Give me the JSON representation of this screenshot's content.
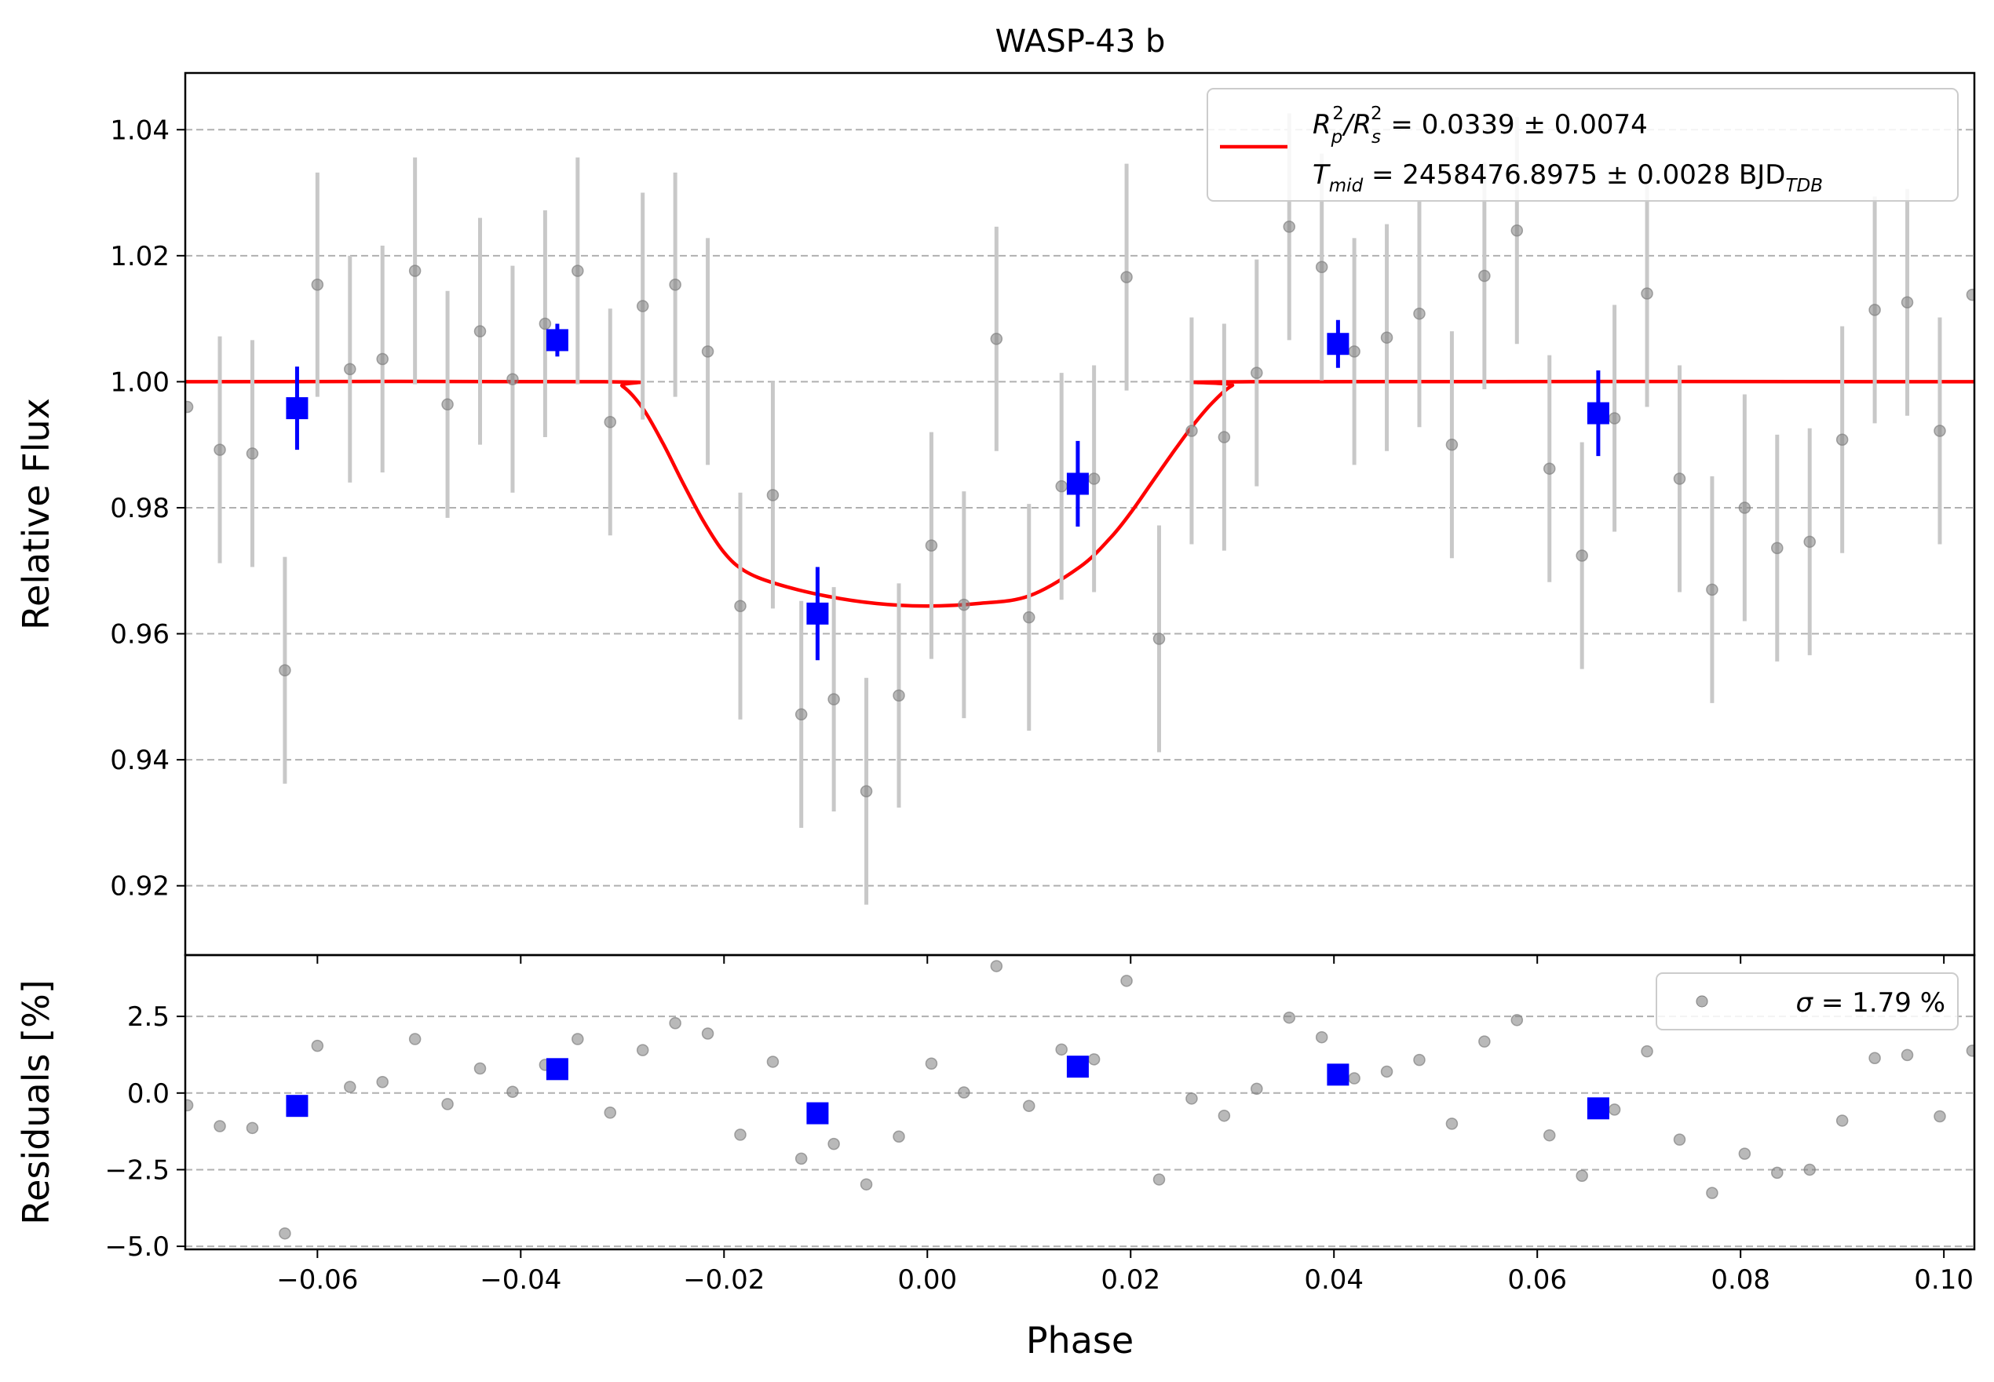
{
  "chart_data": [
    {
      "type": "scatter",
      "panel": "main",
      "title": "WASP-43 b",
      "xlabel": "",
      "ylabel": "Relative Flux",
      "xlim": [
        -0.073,
        0.103
      ],
      "ylim": [
        0.909,
        1.049
      ],
      "grid": "y dashed",
      "legend_placement": "top-right",
      "xticks": [
        -0.06,
        -0.04,
        -0.02,
        0.0,
        0.02,
        0.04,
        0.06,
        0.08,
        0.1
      ],
      "xtick_labels": [
        "−0.06",
        "−0.04",
        "−0.02",
        "0.00",
        "0.02",
        "0.04",
        "0.06",
        "0.08",
        "0.10"
      ],
      "yticks": [
        0.92,
        0.94,
        0.96,
        0.98,
        1.0,
        1.02,
        1.04
      ],
      "ytick_labels": [
        "0.92",
        "0.94",
        "0.96",
        "0.98",
        "1.00",
        "1.02",
        "1.04"
      ],
      "series": [
        {
          "name": "",
          "kind": "raw",
          "color": "#808080",
          "points": [
            {
              "x": -0.0728,
              "y": 0.996,
              "err": 0
            },
            {
              "x": -0.0696,
              "y": 0.9892,
              "err": 0.018
            },
            {
              "x": -0.0664,
              "y": 0.9886,
              "err": 0.018
            },
            {
              "x": -0.0632,
              "y": 0.9542,
              "err": 0.018
            },
            {
              "x": -0.06,
              "y": 1.0154,
              "err": 0.0178
            },
            {
              "x": -0.0568,
              "y": 1.002,
              "err": 0.018
            },
            {
              "x": -0.0536,
              "y": 1.0036,
              "err": 0.018
            },
            {
              "x": -0.0504,
              "y": 1.0176,
              "err": 0.018
            },
            {
              "x": -0.0472,
              "y": 0.9964,
              "err": 0.018
            },
            {
              "x": -0.044,
              "y": 1.008,
              "err": 0.018
            },
            {
              "x": -0.0408,
              "y": 1.0004,
              "err": 0.018
            },
            {
              "x": -0.0376,
              "y": 1.0092,
              "err": 0.018
            },
            {
              "x": -0.0344,
              "y": 1.0176,
              "err": 0.018
            },
            {
              "x": -0.0312,
              "y": 0.9936,
              "err": 0.018
            },
            {
              "x": -0.028,
              "y": 1.012,
              "err": 0.018
            },
            {
              "x": -0.0248,
              "y": 1.0154,
              "err": 0.0178
            },
            {
              "x": -0.0216,
              "y": 1.0048,
              "err": 0.018
            },
            {
              "x": -0.0184,
              "y": 0.9644,
              "err": 0.018
            },
            {
              "x": -0.0152,
              "y": 0.982,
              "err": 0.018
            },
            {
              "x": -0.0124,
              "y": 0.9472,
              "err": 0.018
            },
            {
              "x": -0.0092,
              "y": 0.9496,
              "err": 0.0178
            },
            {
              "x": -0.006,
              "y": 0.935,
              "err": 0.018
            },
            {
              "x": -0.0028,
              "y": 0.9502,
              "err": 0.0178
            },
            {
              "x": 0.0004,
              "y": 0.974,
              "err": 0.018
            },
            {
              "x": 0.0036,
              "y": 0.9646,
              "err": 0.018
            },
            {
              "x": 0.0068,
              "y": 1.0068,
              "err": 0.0178
            },
            {
              "x": 0.01,
              "y": 0.9626,
              "err": 0.018
            },
            {
              "x": 0.0132,
              "y": 0.9834,
              "err": 0.018
            },
            {
              "x": 0.0164,
              "y": 0.9846,
              "err": 0.018
            },
            {
              "x": 0.0196,
              "y": 1.0166,
              "err": 0.018
            },
            {
              "x": 0.0228,
              "y": 0.9592,
              "err": 0.018
            },
            {
              "x": 0.026,
              "y": 0.9922,
              "err": 0.018
            },
            {
              "x": 0.0292,
              "y": 0.9912,
              "err": 0.018
            },
            {
              "x": 0.0324,
              "y": 1.0014,
              "err": 0.018
            },
            {
              "x": 0.0356,
              "y": 1.0246,
              "err": 0.018
            },
            {
              "x": 0.0388,
              "y": 1.0182,
              "err": 0.018
            },
            {
              "x": 0.042,
              "y": 1.0048,
              "err": 0.018
            },
            {
              "x": 0.0452,
              "y": 1.007,
              "err": 0.018
            },
            {
              "x": 0.0484,
              "y": 1.0108,
              "err": 0.018
            },
            {
              "x": 0.0516,
              "y": 0.99,
              "err": 0.018
            },
            {
              "x": 0.0548,
              "y": 1.0168,
              "err": 0.018
            },
            {
              "x": 0.058,
              "y": 1.024,
              "err": 0.018
            },
            {
              "x": 0.0612,
              "y": 0.9862,
              "err": 0.018
            },
            {
              "x": 0.0644,
              "y": 0.9724,
              "err": 0.018
            },
            {
              "x": 0.0676,
              "y": 0.9942,
              "err": 0.018
            },
            {
              "x": 0.0708,
              "y": 1.014,
              "err": 0.018
            },
            {
              "x": 0.074,
              "y": 0.9846,
              "err": 0.018
            },
            {
              "x": 0.0772,
              "y": 0.967,
              "err": 0.018
            },
            {
              "x": 0.0804,
              "y": 0.98,
              "err": 0.018
            },
            {
              "x": 0.0836,
              "y": 0.9736,
              "err": 0.018
            },
            {
              "x": 0.0868,
              "y": 0.9746,
              "err": 0.018
            },
            {
              "x": 0.09,
              "y": 0.9908,
              "err": 0.018
            },
            {
              "x": 0.0932,
              "y": 1.0114,
              "err": 0.018
            },
            {
              "x": 0.0964,
              "y": 1.0126,
              "err": 0.018
            },
            {
              "x": 0.0996,
              "y": 0.9922,
              "err": 0.018
            },
            {
              "x": 0.1028,
              "y": 1.0138,
              "err": 0
            }
          ]
        },
        {
          "name": "",
          "kind": "binned",
          "color": "#0000ff",
          "points": [
            {
              "x": -0.062,
              "y": 0.9958,
              "err": 0.0066
            },
            {
              "x": -0.0364,
              "y": 1.0066,
              "err": 0.0026
            },
            {
              "x": -0.0108,
              "y": 0.9632,
              "err": 0.0074
            },
            {
              "x": 0.0148,
              "y": 0.9838,
              "err": 0.0068
            },
            {
              "x": 0.0404,
              "y": 1.006,
              "err": 0.0038
            },
            {
              "x": 0.066,
              "y": 0.995,
              "err": 0.0068
            }
          ]
        },
        {
          "name": "R_p^2/R_s^2 = 0.0339 ± 0.0074 ; T_mid = 2458476.8975 ± 0.0028 BJD_TDB",
          "kind": "model",
          "color": "#ff0000",
          "points": [
            {
              "x": -0.073,
              "y": 1.0
            },
            {
              "x": -0.0318,
              "y": 1.0
            },
            {
              "x": -0.03,
              "y": 0.9993
            },
            {
              "x": -0.028,
              "y": 0.9958
            },
            {
              "x": -0.026,
              "y": 0.9902
            },
            {
              "x": -0.024,
              "y": 0.9838
            },
            {
              "x": -0.022,
              "y": 0.9778
            },
            {
              "x": -0.02,
              "y": 0.9729
            },
            {
              "x": -0.018,
              "y": 0.97
            },
            {
              "x": -0.015,
              "y": 0.968
            },
            {
              "x": -0.01,
              "y": 0.966
            },
            {
              "x": -0.005,
              "y": 0.9648
            },
            {
              "x": 0.0,
              "y": 0.9644
            },
            {
              "x": 0.005,
              "y": 0.9648
            },
            {
              "x": 0.01,
              "y": 0.966
            },
            {
              "x": 0.015,
              "y": 0.9706
            },
            {
              "x": 0.018,
              "y": 0.9752
            },
            {
              "x": 0.02,
              "y": 0.9792
            },
            {
              "x": 0.022,
              "y": 0.9838
            },
            {
              "x": 0.024,
              "y": 0.9884
            },
            {
              "x": 0.026,
              "y": 0.9928
            },
            {
              "x": 0.028,
              "y": 0.9966
            },
            {
              "x": 0.03,
              "y": 0.9994
            },
            {
              "x": 0.0318,
              "y": 1.0
            },
            {
              "x": 0.103,
              "y": 1.0
            }
          ]
        }
      ],
      "legend": {
        "line1": {
          "prefix": "R",
          "sub1": "p",
          "sup1": "2",
          "mid": "/R",
          "sub2": "s",
          "sup2": "2",
          "rest": " = 0.0339 ± 0.0074"
        },
        "line2": {
          "prefix": "T",
          "sub1": "mid",
          "rest": " = 2458476.8975 ± 0.0028 BJD",
          "sub2": "TDB"
        }
      }
    },
    {
      "type": "scatter",
      "panel": "residuals",
      "xlabel": "Phase",
      "ylabel": "Residuals [%]",
      "xlim": [
        -0.073,
        0.103
      ],
      "ylim": [
        -5.1,
        4.5
      ],
      "grid": "y dashed",
      "legend_placement": "top-right",
      "yticks": [
        -5.0,
        -2.5,
        0.0,
        2.5
      ],
      "ytick_labels": [
        "−5.0",
        "−2.5",
        "0.0",
        "2.5"
      ],
      "legend": {
        "symbol": "σ",
        "text": " = 1.79 %"
      },
      "series": [
        {
          "name": "σ = 1.79 %",
          "kind": "raw",
          "color": "#808080",
          "points": [
            {
              "x": -0.0728,
              "y": -0.4
            },
            {
              "x": -0.0696,
              "y": -1.08
            },
            {
              "x": -0.0664,
              "y": -1.14
            },
            {
              "x": -0.0632,
              "y": -4.58
            },
            {
              "x": -0.06,
              "y": 1.54
            },
            {
              "x": -0.0568,
              "y": 0.2
            },
            {
              "x": -0.0536,
              "y": 0.36
            },
            {
              "x": -0.0504,
              "y": 1.76
            },
            {
              "x": -0.0472,
              "y": -0.36
            },
            {
              "x": -0.044,
              "y": 0.8
            },
            {
              "x": -0.0408,
              "y": 0.04
            },
            {
              "x": -0.0376,
              "y": 0.92
            },
            {
              "x": -0.0344,
              "y": 1.76
            },
            {
              "x": -0.0312,
              "y": -0.64
            },
            {
              "x": -0.028,
              "y": 1.4
            },
            {
              "x": -0.0248,
              "y": 2.28
            },
            {
              "x": -0.0216,
              "y": 1.94
            },
            {
              "x": -0.0184,
              "y": -1.36
            },
            {
              "x": -0.0152,
              "y": 1.02
            },
            {
              "x": -0.0124,
              "y": -2.14
            },
            {
              "x": -0.0092,
              "y": -1.66
            },
            {
              "x": -0.006,
              "y": -2.98
            },
            {
              "x": -0.0028,
              "y": -1.42
            },
            {
              "x": 0.0004,
              "y": 0.96
            },
            {
              "x": 0.0036,
              "y": 0.02
            },
            {
              "x": 0.0068,
              "y": 4.14
            },
            {
              "x": 0.01,
              "y": -0.42
            },
            {
              "x": 0.0132,
              "y": 1.42
            },
            {
              "x": 0.0164,
              "y": 1.1
            },
            {
              "x": 0.0196,
              "y": 3.66
            },
            {
              "x": 0.0228,
              "y": -2.82
            },
            {
              "x": 0.026,
              "y": -0.18
            },
            {
              "x": 0.0292,
              "y": -0.74
            },
            {
              "x": 0.0324,
              "y": 0.14
            },
            {
              "x": 0.0356,
              "y": 2.46
            },
            {
              "x": 0.0388,
              "y": 1.82
            },
            {
              "x": 0.042,
              "y": 0.48
            },
            {
              "x": 0.0452,
              "y": 0.7
            },
            {
              "x": 0.0484,
              "y": 1.08
            },
            {
              "x": 0.0516,
              "y": -1.0
            },
            {
              "x": 0.0548,
              "y": 1.68
            },
            {
              "x": 0.058,
              "y": 2.38
            },
            {
              "x": 0.0612,
              "y": -1.38
            },
            {
              "x": 0.0644,
              "y": -2.7
            },
            {
              "x": 0.0676,
              "y": -0.54
            },
            {
              "x": 0.0708,
              "y": 1.36
            },
            {
              "x": 0.074,
              "y": -1.52
            },
            {
              "x": 0.0772,
              "y": -3.26
            },
            {
              "x": 0.0804,
              "y": -1.98
            },
            {
              "x": 0.0836,
              "y": -2.6
            },
            {
              "x": 0.0868,
              "y": -2.5
            },
            {
              "x": 0.09,
              "y": -0.9
            },
            {
              "x": 0.0932,
              "y": 1.14
            },
            {
              "x": 0.0964,
              "y": 1.24
            },
            {
              "x": 0.0996,
              "y": -0.76
            },
            {
              "x": 0.1028,
              "y": 1.38
            }
          ]
        },
        {
          "name": "",
          "kind": "binned",
          "color": "#0000ff",
          "points": [
            {
              "x": -0.062,
              "y": -0.42
            },
            {
              "x": -0.0364,
              "y": 0.78
            },
            {
              "x": -0.0108,
              "y": -0.66
            },
            {
              "x": 0.0148,
              "y": 0.86
            },
            {
              "x": 0.0404,
              "y": 0.6
            },
            {
              "x": 0.066,
              "y": -0.5
            }
          ]
        }
      ]
    }
  ]
}
